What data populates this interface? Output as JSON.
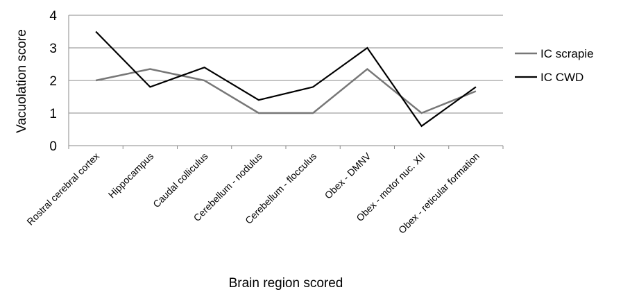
{
  "chart_data": {
    "type": "line",
    "categories": [
      "Rostral cerebral cortex",
      "Hippocampus",
      "Caudal colliculus",
      "Cerebellum - nodulus",
      "Cerebellum - flocculus",
      "Obex - DMNV",
      "Obex - motor nuc. XII",
      "Obex - reticular formation"
    ],
    "series": [
      {
        "name": "IC scrapie",
        "color": "#777777",
        "values": [
          2.0,
          2.35,
          2.0,
          1.0,
          1.0,
          2.35,
          1.0,
          1.67
        ]
      },
      {
        "name": "IC CWD",
        "color": "#000000",
        "values": [
          3.5,
          1.8,
          2.4,
          1.4,
          1.8,
          3.0,
          0.6,
          1.8
        ]
      }
    ],
    "title": "",
    "xlabel": "Brain region scored",
    "ylabel": "Vacuolation score",
    "ylim": [
      0,
      4
    ],
    "yticks": [
      "0",
      "1",
      "2",
      "3",
      "4"
    ],
    "grid": "horizontal",
    "legend_position": "right"
  }
}
